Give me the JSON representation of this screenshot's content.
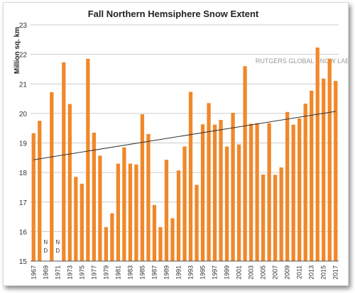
{
  "chart_data": {
    "type": "bar",
    "title": "Fall Northern Hemsiphere Snow Extent",
    "ylabel": "Million sq. km",
    "xlabel": "",
    "watermark": "RUTGERS GLOBAL SNOW LAB",
    "ylim": [
      15,
      23
    ],
    "yticks": [
      15,
      16,
      17,
      18,
      19,
      20,
      21,
      22,
      23
    ],
    "grid": true,
    "bar_color": "#f0882a",
    "trendline": {
      "start": 18.43,
      "end": 20.07,
      "color": "#333333"
    },
    "no_data_marker": "N D",
    "categories": [
      "1967",
      "1968",
      "1969",
      "1970",
      "1971",
      "1972",
      "1973",
      "1974",
      "1975",
      "1976",
      "1977",
      "1978",
      "1979",
      "1980",
      "1981",
      "1982",
      "1983",
      "1984",
      "1985",
      "1986",
      "1987",
      "1988",
      "1989",
      "1990",
      "1991",
      "1992",
      "1993",
      "1994",
      "1995",
      "1996",
      "1997",
      "1998",
      "1999",
      "2000",
      "2001",
      "2002",
      "2003",
      "2004",
      "2005",
      "2006",
      "2007",
      "2008",
      "2009",
      "2010",
      "2011",
      "2012",
      "2013",
      "2014",
      "2015",
      "2016",
      "2017"
    ],
    "tick_labels": [
      "1967",
      "1969",
      "1971",
      "1973",
      "1975",
      "1977",
      "1979",
      "1981",
      "1983",
      "1985",
      "1987",
      "1989",
      "1991",
      "1993",
      "1995",
      "1997",
      "1999",
      "2001",
      "2003",
      "2005",
      "2007",
      "2009",
      "2011",
      "2013",
      "2015",
      "2017"
    ],
    "values": [
      19.33,
      19.75,
      null,
      20.72,
      null,
      21.73,
      20.32,
      17.85,
      17.62,
      21.85,
      19.35,
      18.57,
      16.15,
      16.62,
      18.3,
      18.85,
      18.3,
      18.27,
      19.97,
      19.3,
      16.9,
      16.15,
      18.43,
      16.45,
      18.07,
      18.88,
      20.73,
      17.58,
      19.63,
      20.35,
      19.62,
      19.78,
      18.88,
      20.02,
      18.95,
      21.6,
      19.65,
      19.67,
      17.93,
      19.67,
      17.92,
      18.17,
      20.05,
      19.62,
      19.83,
      20.33,
      20.77,
      22.23,
      21.18,
      21.85,
      21.1
    ]
  }
}
